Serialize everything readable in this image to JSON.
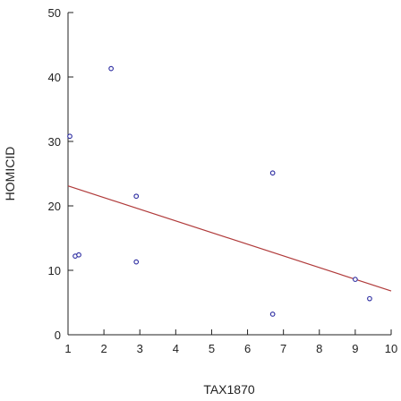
{
  "chart_data": {
    "type": "scatter",
    "xlabel": "TAX1870",
    "ylabel": "HOMICID",
    "xlim": [
      1,
      10
    ],
    "ylim": [
      0,
      50
    ],
    "x_ticks": [
      "1",
      "2",
      "3",
      "4",
      "5",
      "6",
      "7",
      "8",
      "9",
      "10"
    ],
    "y_ticks": [
      "0",
      "10",
      "20",
      "30",
      "40",
      "50"
    ],
    "grid": false,
    "points": [
      {
        "x": 1.05,
        "y": 30.8
      },
      {
        "x": 1.2,
        "y": 12.2
      },
      {
        "x": 1.3,
        "y": 12.4
      },
      {
        "x": 2.2,
        "y": 41.3
      },
      {
        "x": 2.9,
        "y": 21.5
      },
      {
        "x": 2.9,
        "y": 11.3
      },
      {
        "x": 6.7,
        "y": 25.1
      },
      {
        "x": 6.7,
        "y": 3.2
      },
      {
        "x": 9.0,
        "y": 8.6
      },
      {
        "x": 9.4,
        "y": 5.6
      }
    ],
    "fit_line": {
      "x": [
        1,
        10
      ],
      "y": [
        23.1,
        6.8
      ]
    },
    "colors": {
      "points": "#2a2aa0",
      "fit_line": "#b03a3a",
      "axes": "#222222"
    }
  }
}
